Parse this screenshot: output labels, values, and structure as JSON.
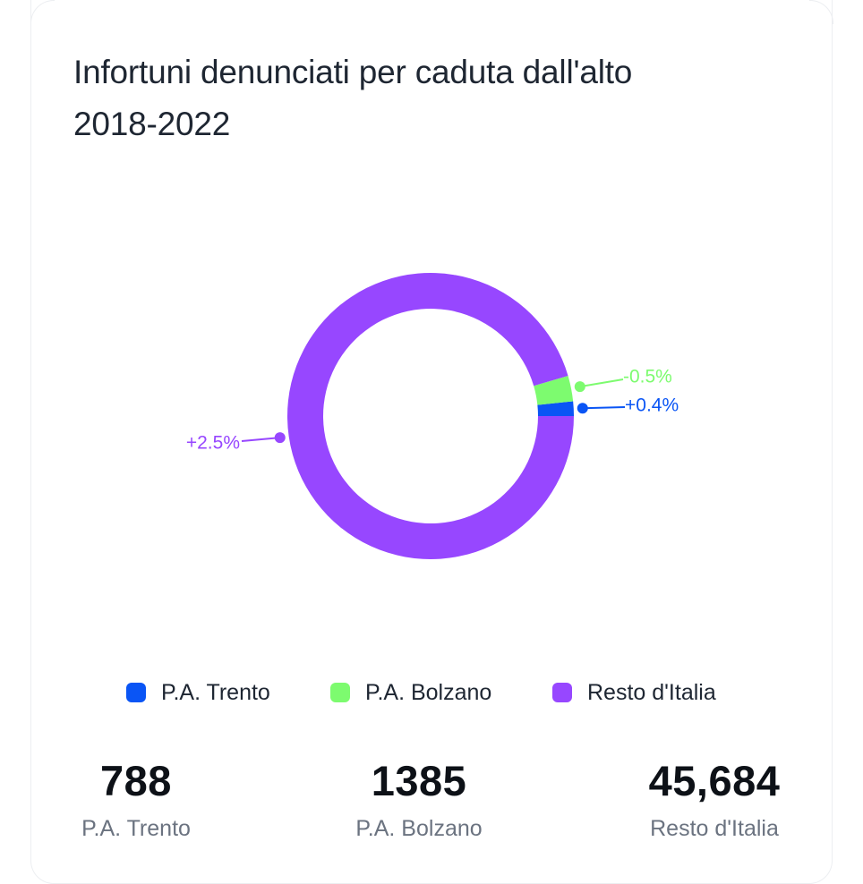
{
  "title_line1": "Infortuni denunciati per caduta dall'alto",
  "title_line2": "2018-2022",
  "chart_data": {
    "type": "pie",
    "variant": "donut",
    "title": "Infortuni denunciati per caduta dall'alto 2018-2022",
    "series": [
      {
        "name": "P.A. Trento",
        "value": 788,
        "label": "+0.4%",
        "color": "#0a55f5"
      },
      {
        "name": "P.A. Bolzano",
        "value": 1385,
        "label": "-0.5%",
        "color": "#7dfb6f"
      },
      {
        "name": "Resto d'Italia",
        "value": 45684,
        "label": "+2.5%",
        "color": "#9747ff"
      }
    ],
    "legend_position": "bottom"
  },
  "legend": [
    {
      "label": "P.A. Trento",
      "color": "#0a55f5"
    },
    {
      "label": "P.A. Bolzano",
      "color": "#7dfb6f"
    },
    {
      "label": "Resto d'Italia",
      "color": "#9747ff"
    }
  ],
  "stats": [
    {
      "value": "788",
      "label": "P.A. Trento"
    },
    {
      "value": "1385",
      "label": "P.A. Bolzano"
    },
    {
      "value": "45,684",
      "label": "Resto d'Italia"
    }
  ]
}
